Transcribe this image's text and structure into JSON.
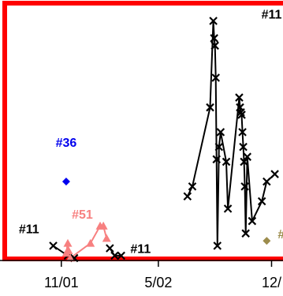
{
  "chart_data": {
    "type": "scatter",
    "title": "",
    "xlabel": "",
    "ylabel": "",
    "x_ticks": [
      {
        "label": "11/01",
        "t": 0
      },
      {
        "label": "5/02",
        "t": 6
      },
      {
        "label": "12/",
        "t": 13
      }
    ],
    "xlim": [
      -3.5,
      14.0
    ],
    "ylim": [
      0,
      100
    ],
    "series": [
      {
        "name": "#11",
        "color": "#000000",
        "marker": "x",
        "line": true,
        "segments": [
          [
            [
              -0.5,
              5
            ],
            [
              0.4,
              1
            ],
            [
              0.8,
              0
            ]
          ],
          [
            [
              3.0,
              4
            ],
            [
              3.3,
              1
            ],
            [
              3.7,
              1
            ]
          ],
          [
            [
              7.8,
              25
            ],
            [
              8.1,
              29
            ],
            [
              9.2,
              61
            ],
            [
              9.4,
              96
            ],
            [
              9.45,
              89
            ],
            [
              9.5,
              86
            ],
            [
              9.55,
              73
            ],
            [
              9.6,
              40
            ],
            [
              9.65,
              5
            ],
            [
              9.75,
              45
            ],
            [
              9.85,
              51
            ],
            [
              10.2,
              39
            ],
            [
              10.3,
              20
            ],
            [
              11.0,
              65
            ],
            [
              11.05,
              61
            ],
            [
              11.1,
              59
            ],
            [
              11.15,
              58
            ],
            [
              11.2,
              51
            ],
            [
              11.25,
              45
            ],
            [
              11.3,
              39
            ],
            [
              11.35,
              29
            ],
            [
              11.4,
              10
            ],
            [
              11.5,
              41
            ],
            [
              11.8,
              15
            ],
            [
              12.4,
              23
            ],
            [
              12.7,
              31
            ],
            [
              13.2,
              34
            ]
          ]
        ]
      },
      {
        "name": "#51",
        "color": "#f78080",
        "marker": "triangle",
        "line": true,
        "segments": [
          [
            [
              0.3,
              2
            ],
            [
              0.4,
              6
            ],
            [
              0.45,
              3
            ],
            [
              0.55,
              0
            ],
            [
              1.8,
              6
            ],
            [
              2.4,
              13
            ],
            [
              2.6,
              13
            ],
            [
              2.8,
              8
            ]
          ]
        ]
      },
      {
        "name": "#36",
        "color": "#0000ee",
        "marker": "diamond",
        "line": false,
        "segments": [
          [
            [
              0.3,
              31
            ]
          ]
        ]
      },
      {
        "name": "",
        "color": "#9c8c4c",
        "marker": "diamond",
        "line": false,
        "segments": [
          [
            [
              12.7,
              7
            ]
          ]
        ]
      }
    ],
    "annotations": [
      {
        "text": "#11",
        "color": "#000000",
        "t": 13.0,
        "y": 97
      },
      {
        "text": "#36",
        "color": "#0000ee",
        "t": 0.3,
        "y": 45
      },
      {
        "text": "#51",
        "color": "#f78080",
        "t": 1.3,
        "y": 16
      },
      {
        "text": "#11",
        "color": "#000000",
        "t": -2.0,
        "y": 10
      },
      {
        "text": "#11",
        "color": "#000000",
        "t": 4.9,
        "y": 2
      },
      {
        "text": "#",
        "color": "#9c8c4c",
        "t": 13.6,
        "y": 8
      }
    ],
    "grid": false,
    "legend": "none",
    "frame_color": "#ff0000"
  }
}
